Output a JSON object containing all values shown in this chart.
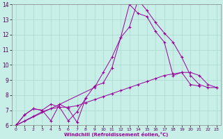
{
  "xlabel": "Windchill (Refroidissement éolien,°C)",
  "background_color": "#c8eee8",
  "grid_color": "#aad8cc",
  "line_color": "#990099",
  "xlim": [
    -0.5,
    23.5
  ],
  "ylim": [
    6,
    14
  ],
  "xticks": [
    0,
    1,
    2,
    3,
    4,
    5,
    6,
    7,
    8,
    9,
    10,
    11,
    12,
    13,
    14,
    15,
    16,
    17,
    18,
    19,
    20,
    21,
    22,
    23
  ],
  "yticks": [
    6,
    7,
    8,
    9,
    10,
    11,
    12,
    13,
    14
  ],
  "series": [
    {
      "x": [
        0,
        1,
        2,
        3,
        4,
        5,
        6,
        7,
        8,
        9,
        10,
        11,
        12,
        13,
        14,
        15,
        16,
        17,
        18,
        19,
        20,
        21
      ],
      "y": [
        6.0,
        6.7,
        7.1,
        7.0,
        6.3,
        7.4,
        7.1,
        6.2,
        7.8,
        8.6,
        8.8,
        9.8,
        11.8,
        14.0,
        13.4,
        13.2,
        12.2,
        11.5,
        9.3,
        9.5,
        8.7,
        8.6
      ]
    },
    {
      "x": [
        0,
        1,
        2,
        3,
        4,
        5,
        6,
        7,
        8
      ],
      "y": [
        6.0,
        6.7,
        7.1,
        7.0,
        7.4,
        7.2,
        6.3,
        6.9,
        7.8
      ]
    },
    {
      "x": [
        0,
        9,
        10,
        11,
        12,
        13,
        14,
        15,
        16,
        17,
        18,
        19,
        20,
        21,
        22,
        23
      ],
      "y": [
        6.0,
        8.5,
        9.5,
        10.5,
        11.8,
        12.5,
        14.3,
        13.6,
        12.8,
        12.1,
        11.5,
        10.5,
        9.3,
        8.7,
        8.5,
        8.5
      ]
    },
    {
      "x": [
        0,
        1,
        2,
        3,
        4,
        5,
        6,
        7,
        8,
        9,
        10,
        11,
        12,
        13,
        14,
        15,
        16,
        17,
        18,
        19,
        20,
        21,
        22,
        23
      ],
      "y": [
        6.0,
        6.3,
        6.6,
        6.9,
        7.1,
        7.2,
        7.2,
        7.3,
        7.5,
        7.7,
        7.9,
        8.1,
        8.3,
        8.5,
        8.7,
        8.9,
        9.1,
        9.3,
        9.4,
        9.5,
        9.5,
        9.3,
        8.7,
        8.5
      ]
    }
  ]
}
